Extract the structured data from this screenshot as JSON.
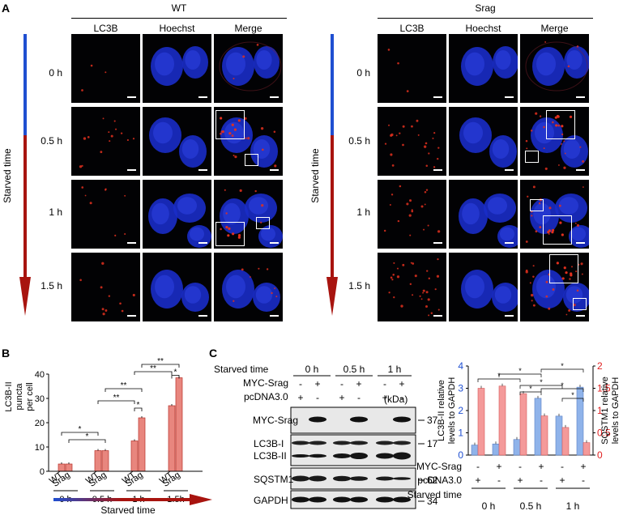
{
  "panel_a": {
    "letter": "A",
    "groups": [
      {
        "title": "WT",
        "columns": [
          "LC3B",
          "Hoechst",
          "Merge"
        ]
      },
      {
        "title": "Srag",
        "columns": [
          "LC3B",
          "Hoechst",
          "Merge"
        ]
      }
    ],
    "time_points": [
      "0 h",
      "0.5 h",
      "1 h",
      "1.5 h"
    ],
    "axis_label": "Starved time"
  },
  "panel_b": {
    "letter": "B",
    "chart_data": {
      "type": "bar",
      "ylabel": "LC3B-II puncta\nper cell",
      "ylim": [
        0,
        40
      ],
      "yticks": [
        0,
        10,
        20,
        30,
        40
      ],
      "categories": [
        "WT",
        "Srag",
        "WT",
        "Srag",
        "WT",
        "Srag",
        "WT",
        "Srag"
      ],
      "groups": [
        "0 h",
        "0.5 h",
        "1 h",
        "1.5h"
      ],
      "values": [
        3,
        3,
        8.5,
        8.5,
        12.5,
        22,
        27,
        38.5
      ],
      "significance": [
        "*",
        "*",
        "**",
        "**",
        "**",
        "*",
        "**",
        "*"
      ],
      "xlabel": "Starved time"
    }
  },
  "panel_c": {
    "letter": "C",
    "row_labels": {
      "starved": "Starved time",
      "myc": "MYC-Srag",
      "pcdna": "pcDNA3.0"
    },
    "time_groups": [
      "0 h",
      "0.5 h",
      "1 h"
    ],
    "myc_signs": [
      "-",
      "+",
      "-",
      "+",
      "-",
      "+"
    ],
    "pcdna_signs": [
      "+",
      "-",
      "+",
      "-",
      "+",
      "-"
    ],
    "kda_label": "(kDa)",
    "bands": [
      "MYC-Srag",
      "LC3B-I",
      "LC3B-II",
      "SQSTM1",
      "GAPDH"
    ],
    "markers": [
      "37",
      "17",
      "62",
      "34"
    ],
    "chart_data": {
      "type": "bar",
      "ylabel_left": "LC3B-II relative\nlevels to GAPDH",
      "ylabel_right": "SQSTM1 relative\nlevels to GAPDH",
      "ylim_left": [
        0,
        4
      ],
      "yticks_left": [
        0,
        1,
        2,
        3,
        4
      ],
      "ylim_right": [
        0,
        2
      ],
      "yticks_right": [
        "0",
        "0.5",
        "1",
        "1.5",
        "2"
      ],
      "groups": [
        "0 h",
        "0.5 h",
        "1 h"
      ],
      "lc3b_values": [
        0.45,
        0.5,
        0.7,
        2.55,
        1.75,
        3.05
      ],
      "sqstm1_values": [
        1.5,
        1.55,
        1.38,
        0.88,
        0.62,
        0.28
      ],
      "lc3b_color": "#8fb3ea",
      "sqstm1_color": "#f49a9a"
    }
  },
  "colors": {
    "blue": "#1f4fd1",
    "red": "#a8140f",
    "puncta": "#e0301e",
    "nucleus": "#1a2cc8"
  }
}
